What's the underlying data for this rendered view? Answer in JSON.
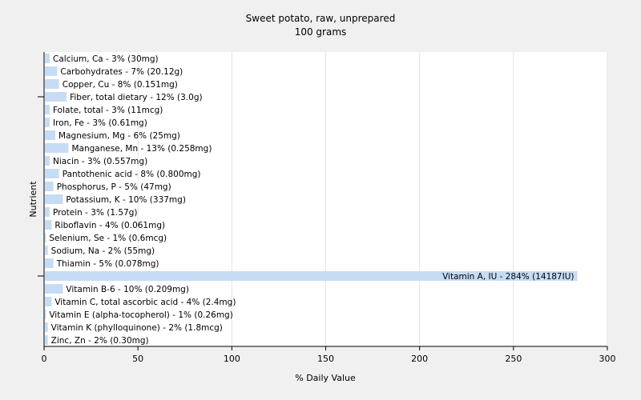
{
  "chart_data": {
    "type": "bar",
    "orientation": "horizontal",
    "title": "Sweet potato, raw, unprepared",
    "subtitle": "100 grams",
    "xlabel": "% Daily Value",
    "ylabel": "Nutrient",
    "xlim": [
      0,
      300
    ],
    "xticks": [
      0,
      50,
      100,
      150,
      200,
      250,
      300
    ],
    "grid": "vertical",
    "bar_color": "#c6dcf5",
    "categories": [
      "Calcium, Ca",
      "Carbohydrates",
      "Copper, Cu",
      "Fiber, total dietary",
      "Folate, total",
      "Iron, Fe",
      "Magnesium, Mg",
      "Manganese, Mn",
      "Niacin",
      "Pantothenic acid",
      "Phosphorus, P",
      "Potassium, K",
      "Protein",
      "Riboflavin",
      "Selenium, Se",
      "Sodium, Na",
      "Thiamin",
      "Vitamin A, IU",
      "Vitamin B-6",
      "Vitamin C, total ascorbic acid",
      "Vitamin E (alpha-tocopherol)",
      "Vitamin K (phylloquinone)",
      "Zinc, Zn"
    ],
    "values": [
      3,
      7,
      8,
      12,
      3,
      3,
      6,
      13,
      3,
      8,
      5,
      10,
      3,
      4,
      1,
      2,
      5,
      284,
      10,
      4,
      1,
      2,
      2
    ],
    "labels": [
      "Calcium, Ca - 3% (30mg)",
      "Carbohydrates - 7% (20.12g)",
      "Copper, Cu - 8% (0.151mg)",
      "Fiber, total dietary - 12% (3.0g)",
      "Folate, total - 3% (11mcg)",
      "Iron, Fe - 3% (0.61mg)",
      "Magnesium, Mg - 6% (25mg)",
      "Manganese, Mn - 13% (0.258mg)",
      "Niacin - 3% (0.557mg)",
      "Pantothenic acid - 8% (0.800mg)",
      "Phosphorus, P - 5% (47mg)",
      "Potassium, K - 10% (337mg)",
      "Protein - 3% (1.57g)",
      "Riboflavin - 4% (0.061mg)",
      "Selenium, Se - 1% (0.6mcg)",
      "Sodium, Na - 2% (55mg)",
      "Thiamin - 5% (0.078mg)",
      "Vitamin A, IU - 284% (14187IU)",
      "Vitamin B-6 - 10% (0.209mg)",
      "Vitamin C, total ascorbic acid - 4% (2.4mg)",
      "Vitamin E (alpha-tocopherol) - 1% (0.26mg)",
      "Vitamin K (phylloquinone) - 2% (1.8mcg)",
      "Zinc, Zn - 2% (0.30mg)"
    ]
  }
}
